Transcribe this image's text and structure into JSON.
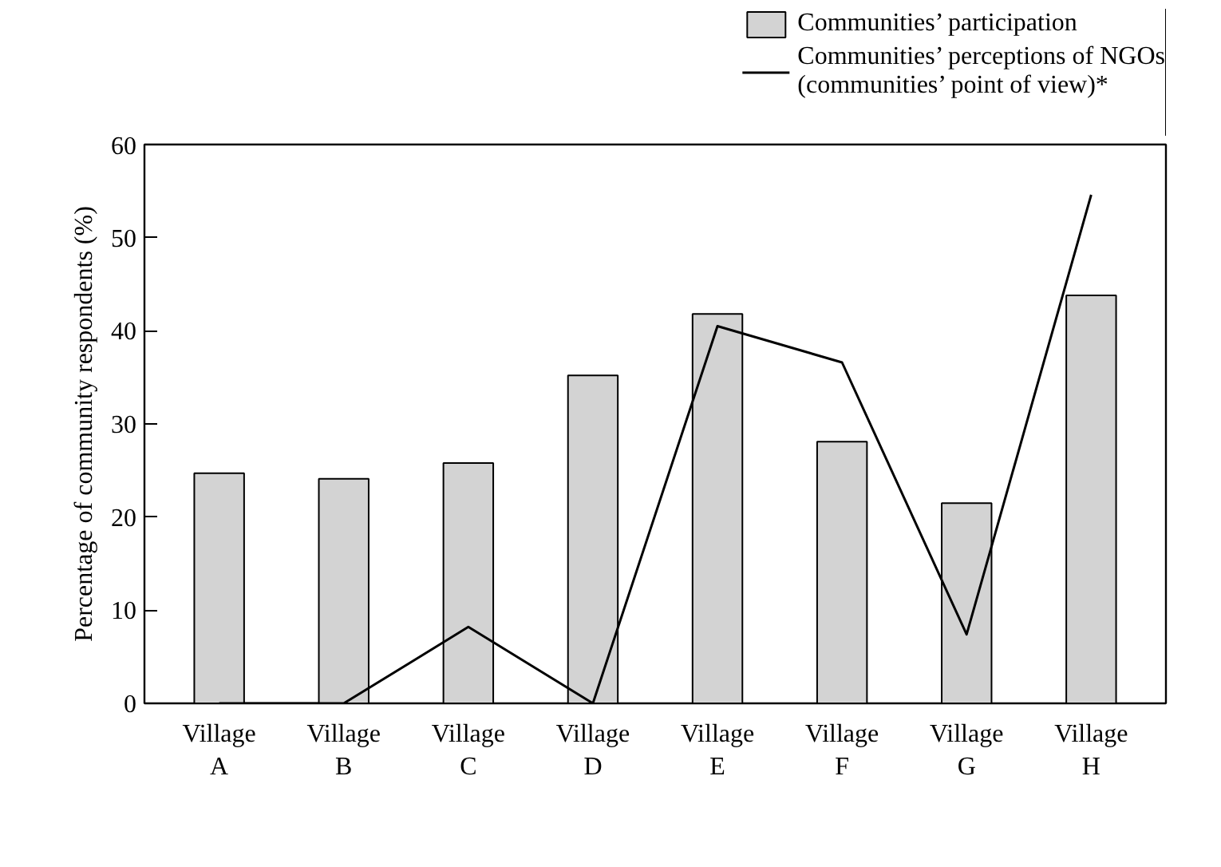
{
  "chart_data": {
    "type": "bar",
    "ylabel": "Percentage of community respondents (%)",
    "categories": [
      "Village A",
      "Village B",
      "Village C",
      "Village D",
      "Village E",
      "Village F",
      "Village G",
      "Village H"
    ],
    "series": [
      {
        "name": "Communities’ participation",
        "color": "#d3d3d3",
        "values": [
          24.7,
          24.1,
          25.8,
          35.2,
          41.8,
          28.1,
          21.5,
          43.8
        ]
      },
      {
        "name": "Communities’ perceptions of NGOs\n(communities’ point of view)*",
        "type": "line",
        "color": "#000000",
        "values": [
          0,
          0,
          8.2,
          0,
          40.5,
          36.6,
          7.4,
          54.6
        ]
      }
    ],
    "ylim": [
      0,
      60
    ],
    "yticks": [
      0,
      10,
      20,
      30,
      40,
      50,
      60
    ],
    "grid": false,
    "legend": "top right",
    "marker": "none",
    "line_style": "solid"
  }
}
